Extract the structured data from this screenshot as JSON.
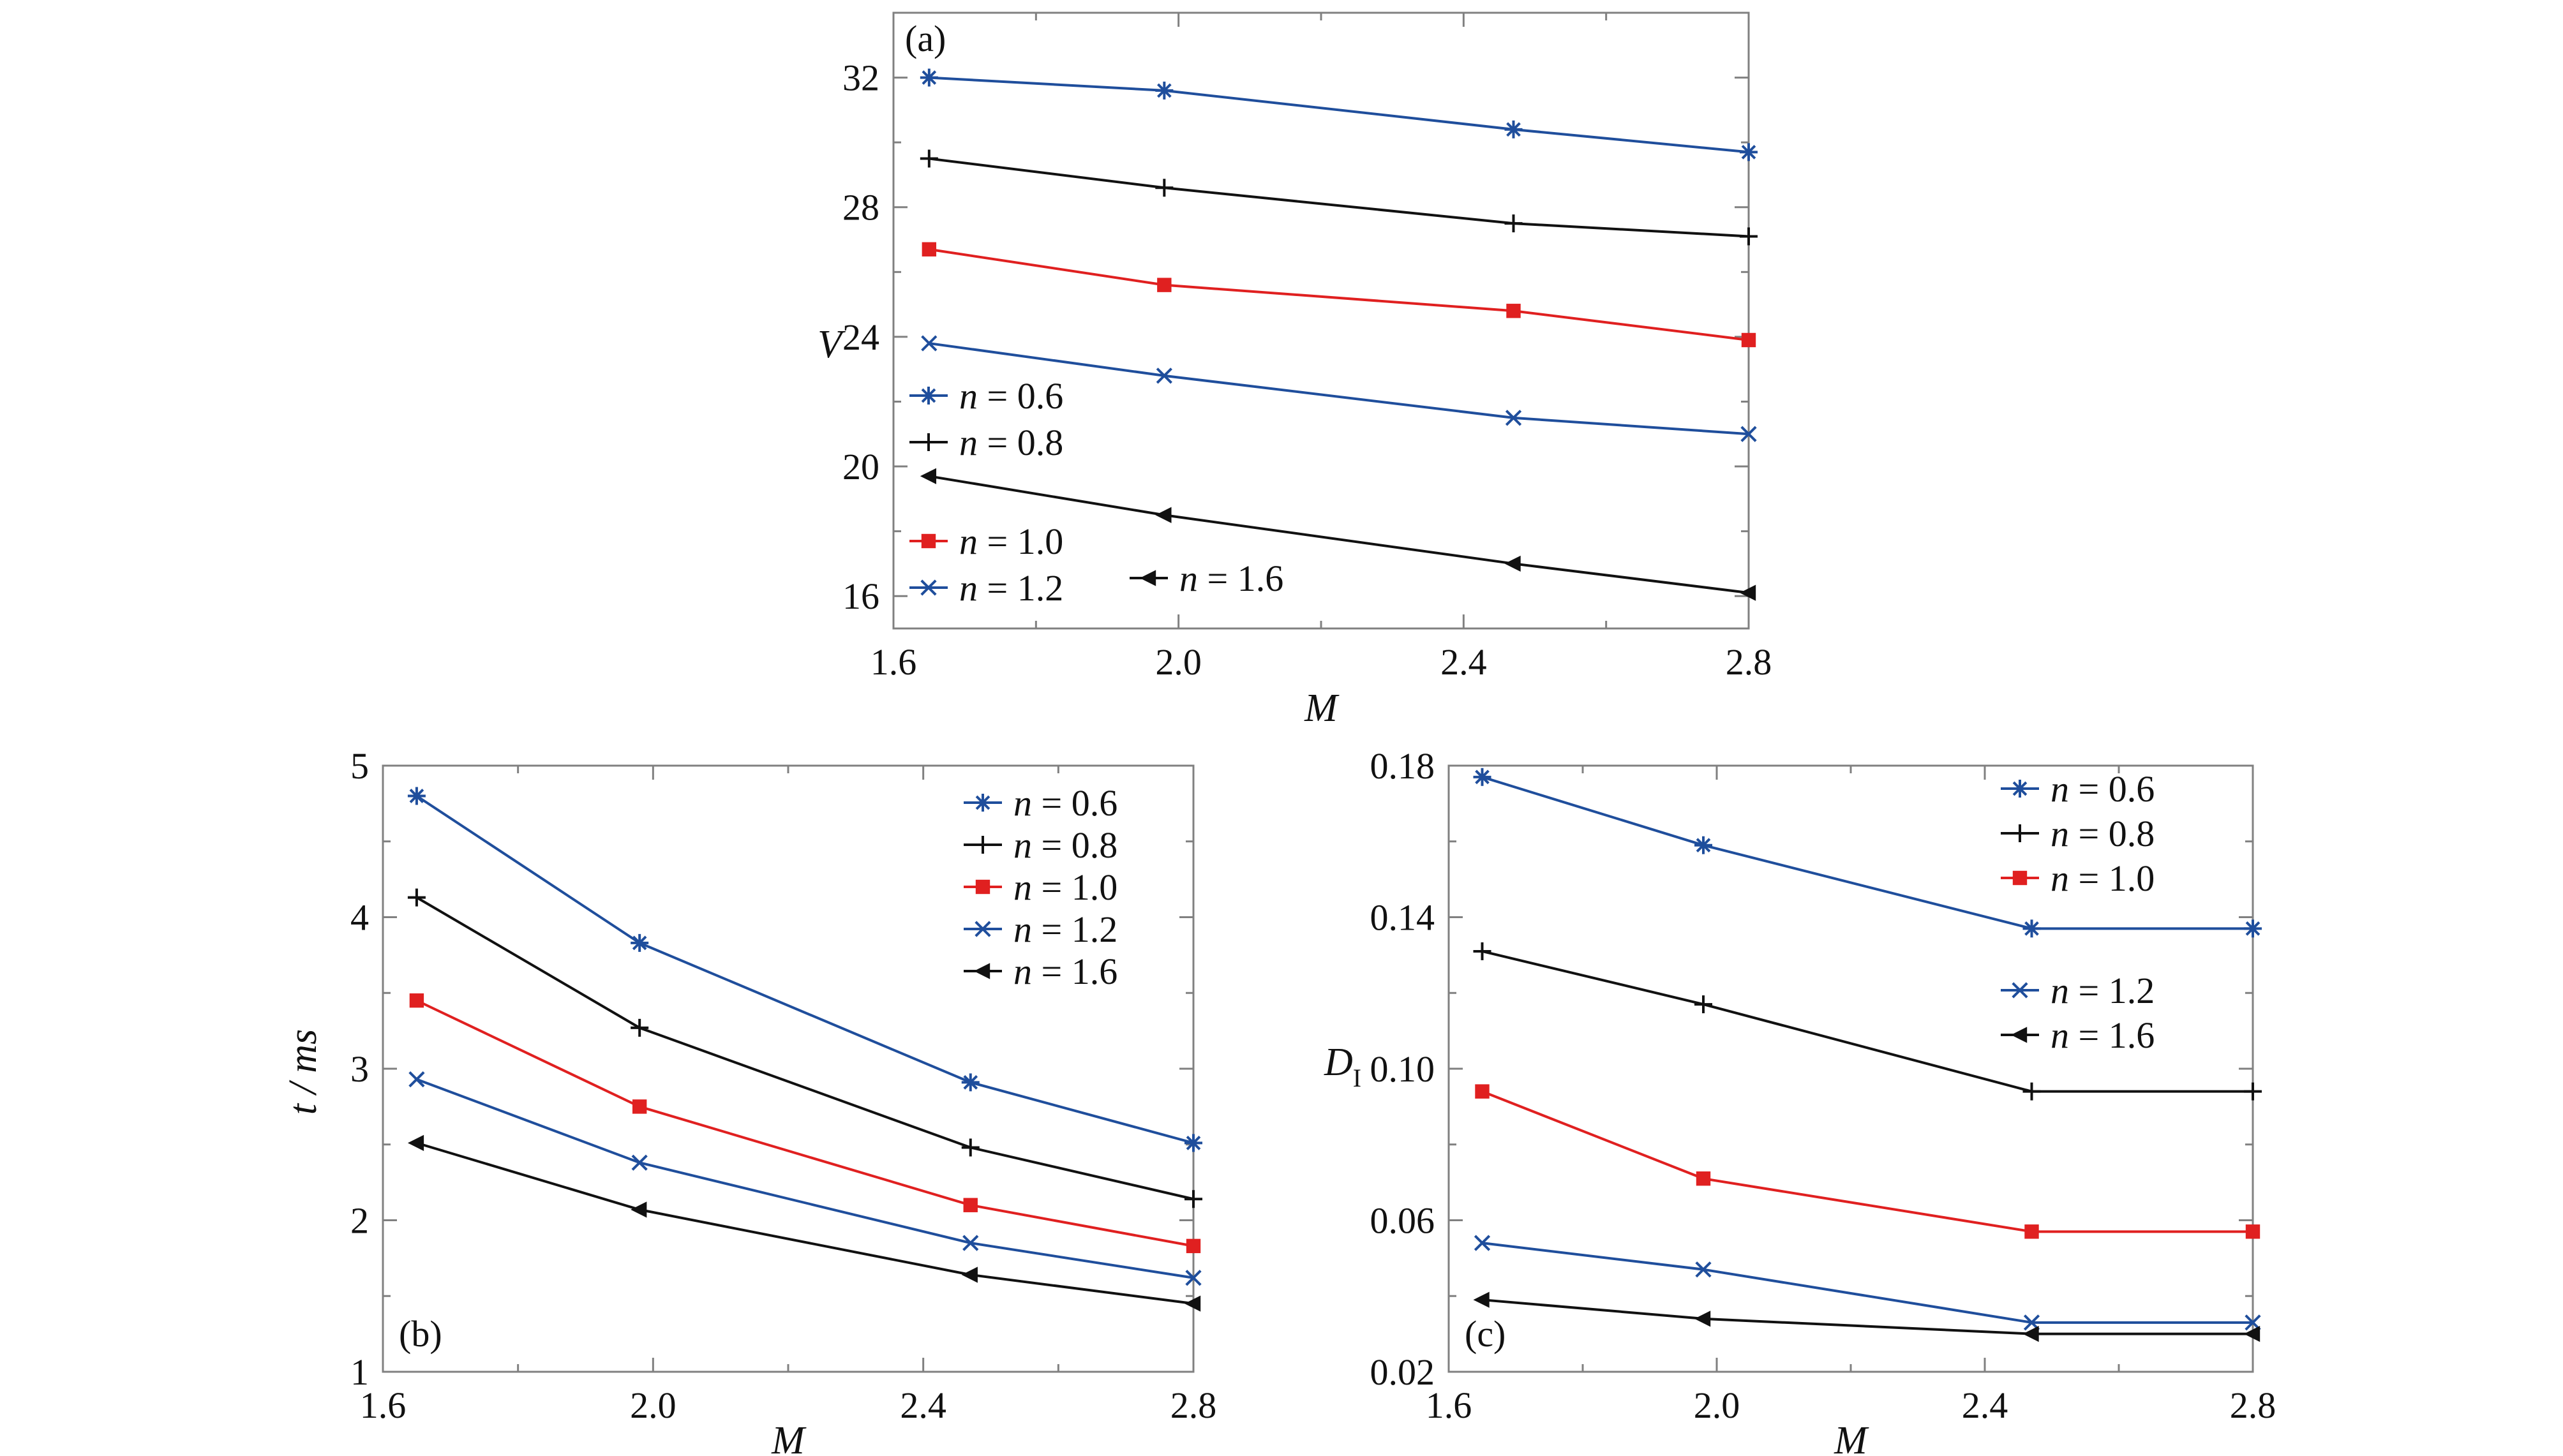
{
  "colors": {
    "blue": "#1f4e9c",
    "black": "#111111",
    "red": "#e02020"
  },
  "legend_labels": [
    "n = 0.6",
    "n = 0.8",
    "n = 1.0",
    "n = 1.2",
    "n = 1.6"
  ],
  "chart_data": [
    {
      "id": "a",
      "type": "line",
      "panel_label": "(a)",
      "xlabel": "M",
      "ylabel": "V",
      "xlim": [
        1.6,
        2.8
      ],
      "ylim": [
        15,
        34
      ],
      "x_ticks": [
        "1.6",
        "2.0",
        "2.4",
        "2.8"
      ],
      "y_ticks": [
        "16",
        "20",
        "24",
        "28",
        "32"
      ],
      "x": [
        1.65,
        1.98,
        2.47,
        2.8
      ],
      "series": [
        {
          "name": "n = 0.6",
          "marker": "asterisk",
          "color": "#1f4e9c",
          "values": [
            32.0,
            31.6,
            30.4,
            29.7
          ]
        },
        {
          "name": "n = 0.8",
          "marker": "plus",
          "color": "#111111",
          "values": [
            29.5,
            28.6,
            27.5,
            27.1
          ]
        },
        {
          "name": "n = 1.0",
          "marker": "square",
          "color": "#e02020",
          "values": [
            26.7,
            25.6,
            24.8,
            23.9
          ]
        },
        {
          "name": "n = 1.2",
          "marker": "x",
          "color": "#1f4e9c",
          "values": [
            23.8,
            22.8,
            21.5,
            21.0
          ]
        },
        {
          "name": "n = 1.6",
          "marker": "triangle-left",
          "color": "#111111",
          "values": [
            19.7,
            18.5,
            17.0,
            16.1
          ]
        }
      ]
    },
    {
      "id": "b",
      "type": "line",
      "panel_label": "(b)",
      "xlabel": "M",
      "ylabel": "t / ms",
      "xlim": [
        1.6,
        2.8
      ],
      "ylim": [
        1,
        5
      ],
      "x_ticks": [
        "1.6",
        "2.0",
        "2.4",
        "2.8"
      ],
      "y_ticks": [
        "1",
        "2",
        "3",
        "4",
        "5"
      ],
      "x": [
        1.65,
        1.98,
        2.47,
        2.8
      ],
      "series": [
        {
          "name": "n = 0.6",
          "marker": "asterisk",
          "color": "#1f4e9c",
          "values": [
            4.8,
            3.83,
            2.91,
            2.51
          ]
        },
        {
          "name": "n = 0.8",
          "marker": "plus",
          "color": "#111111",
          "values": [
            4.13,
            3.27,
            2.48,
            2.14
          ]
        },
        {
          "name": "n = 1.0",
          "marker": "square",
          "color": "#e02020",
          "values": [
            3.45,
            2.75,
            2.1,
            1.83
          ]
        },
        {
          "name": "n = 1.2",
          "marker": "x",
          "color": "#1f4e9c",
          "values": [
            2.93,
            2.38,
            1.85,
            1.62
          ]
        },
        {
          "name": "n = 1.6",
          "marker": "triangle-left",
          "color": "#111111",
          "values": [
            2.51,
            2.07,
            1.64,
            1.45
          ]
        }
      ]
    },
    {
      "id": "c",
      "type": "line",
      "panel_label": "(c)",
      "xlabel": "M",
      "ylabel": "D",
      "ylabel_sub": "I",
      "xlim": [
        1.6,
        2.8
      ],
      "ylim": [
        0.02,
        0.18
      ],
      "x_ticks": [
        "1.6",
        "2.0",
        "2.4",
        "2.8"
      ],
      "y_ticks": [
        "0.02",
        "0.06",
        "0.10",
        "0.14",
        "0.18"
      ],
      "x": [
        1.65,
        1.98,
        2.47,
        2.8
      ],
      "series": [
        {
          "name": "n = 0.6",
          "marker": "asterisk",
          "color": "#1f4e9c",
          "values": [
            0.177,
            0.159,
            0.137,
            0.137
          ]
        },
        {
          "name": "n = 0.8",
          "marker": "plus",
          "color": "#111111",
          "values": [
            0.131,
            0.117,
            0.094,
            0.094
          ]
        },
        {
          "name": "n = 1.0",
          "marker": "square",
          "color": "#e02020",
          "values": [
            0.094,
            0.071,
            0.057,
            0.057
          ]
        },
        {
          "name": "n = 1.2",
          "marker": "x",
          "color": "#1f4e9c",
          "values": [
            0.054,
            0.047,
            0.033,
            0.033
          ]
        },
        {
          "name": "n = 1.6",
          "marker": "triangle-left",
          "color": "#111111",
          "values": [
            0.039,
            0.034,
            0.03,
            0.03
          ]
        }
      ]
    }
  ]
}
